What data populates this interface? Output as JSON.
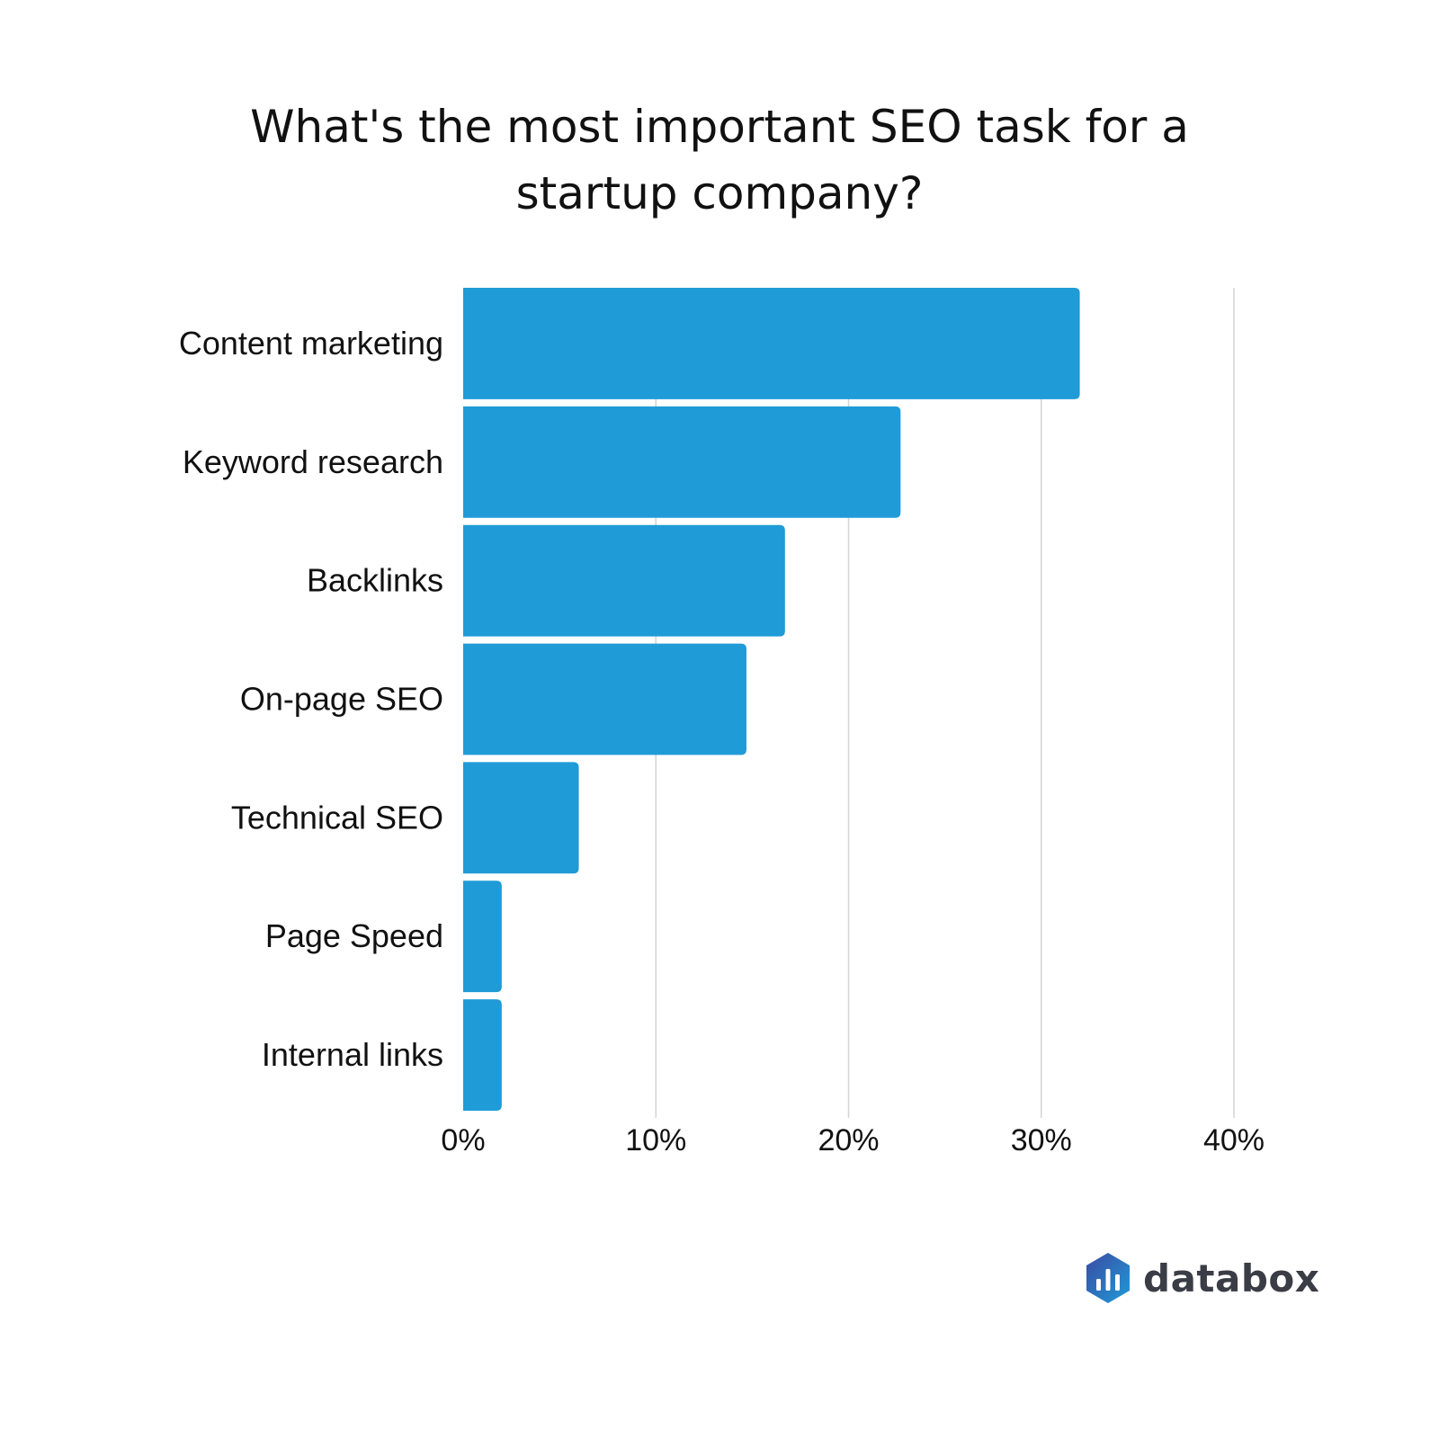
{
  "chart_data": {
    "type": "bar",
    "orientation": "horizontal",
    "title": "What's the most important SEO task for a startup company?",
    "categories": [
      "Content marketing",
      "Keyword research",
      "Backlinks",
      "On-page SEO",
      "Technical SEO",
      "Page Speed",
      "Internal links"
    ],
    "values": [
      32,
      22.7,
      16.7,
      14.7,
      6,
      2,
      2
    ],
    "value_unit": "%",
    "xlim": [
      0,
      40
    ],
    "xticks": [
      0,
      10,
      20,
      30,
      40
    ],
    "xtick_labels": [
      "0%",
      "10%",
      "20%",
      "30%",
      "40%"
    ],
    "xlabel": "",
    "ylabel": "",
    "grid": "vertical",
    "legend": "none",
    "bar_color": "#1f9bd7",
    "grid_color": "#d4d4d4"
  },
  "brand": {
    "name": "databox",
    "logo_icon": "databox-hexagon-icon",
    "logo_colors": [
      "#3b4aa3",
      "#1f9bd7"
    ]
  }
}
